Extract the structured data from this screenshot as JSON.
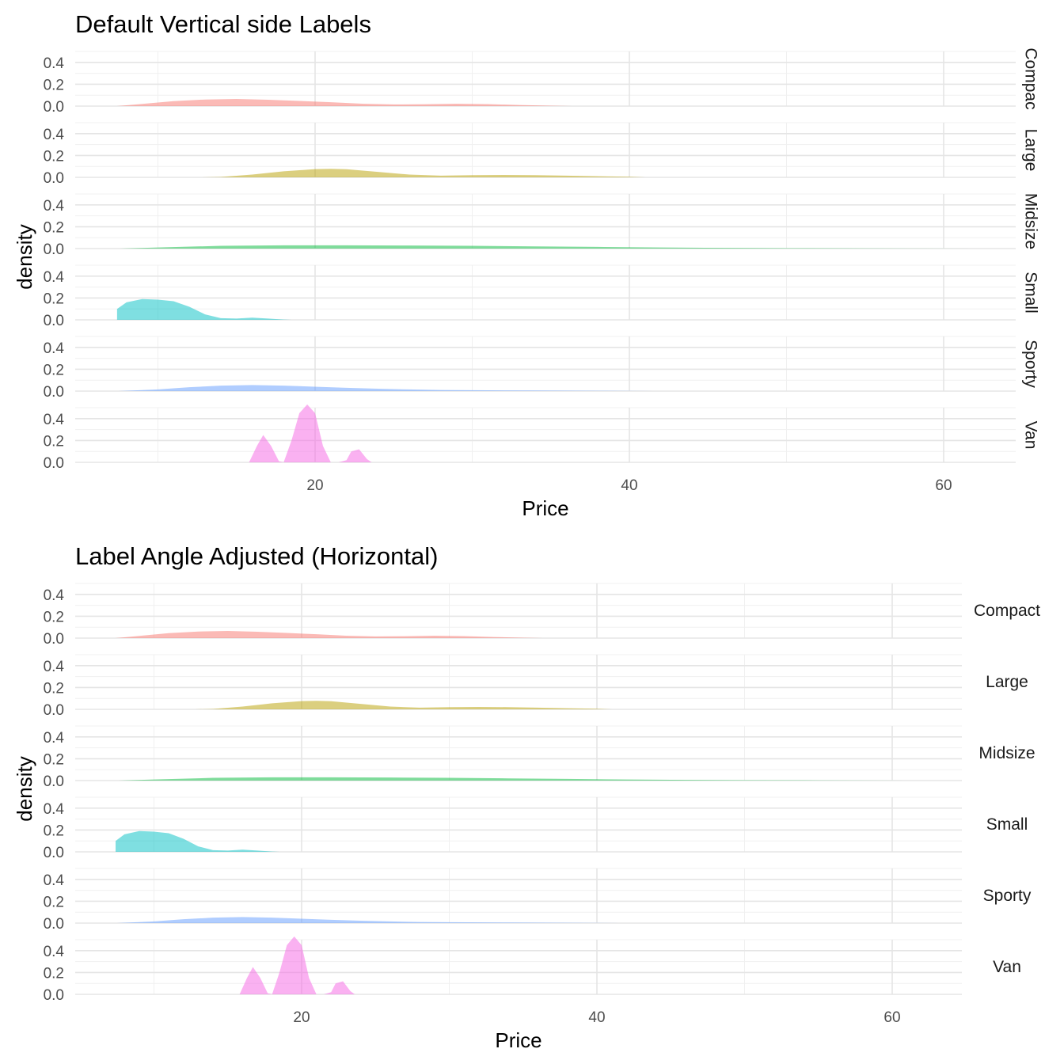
{
  "chart_data": [
    {
      "type": "area",
      "title": "Default Vertical side Labels",
      "xlabel": "Price",
      "ylabel": "density",
      "xlim": [
        5,
        65
      ],
      "ylim": [
        0,
        0.5
      ],
      "x_ticks": [
        20,
        40,
        60
      ],
      "y_ticks": [
        0.0,
        0.2,
        0.4
      ],
      "y_tick_labels": [
        "0.0",
        "0.2",
        "0.4"
      ],
      "grid": true,
      "strip_orientation": "vertical",
      "strip_labels": [
        "Compac",
        "Large",
        "Midsize",
        "Small",
        "Sporty",
        "Van"
      ],
      "series": [
        {
          "name": "Compact",
          "color": "#F8766D",
          "x": [
            7.4,
            9,
            11,
            13,
            15,
            17,
            19,
            21,
            23,
            25,
            27,
            29,
            31,
            33,
            35,
            36.3
          ],
          "y": [
            0,
            0.02,
            0.045,
            0.06,
            0.065,
            0.058,
            0.047,
            0.035,
            0.022,
            0.015,
            0.017,
            0.022,
            0.018,
            0.01,
            0.004,
            0
          ]
        },
        {
          "name": "Large",
          "color": "#B79F00",
          "x": [
            12.8,
            14,
            16,
            18,
            20,
            21,
            22,
            24,
            26,
            28,
            30,
            32,
            34,
            36,
            38,
            40,
            41
          ],
          "y": [
            0,
            0.004,
            0.025,
            0.055,
            0.075,
            0.078,
            0.074,
            0.05,
            0.025,
            0.015,
            0.02,
            0.022,
            0.02,
            0.015,
            0.01,
            0.005,
            0
          ]
        },
        {
          "name": "Midsize",
          "color": "#00BA38",
          "x": [
            7.6,
            10,
            14,
            18,
            22,
            26,
            30,
            34,
            38,
            42,
            46,
            50,
            55,
            62
          ],
          "y": [
            0,
            0.01,
            0.025,
            0.03,
            0.03,
            0.028,
            0.025,
            0.02,
            0.015,
            0.01,
            0.006,
            0.004,
            0.002,
            0
          ]
        },
        {
          "name": "Small",
          "color": "#00BFC4",
          "x": [
            7.4,
            7.4,
            8,
            9,
            10,
            11,
            12,
            13,
            14,
            15,
            16,
            17,
            18,
            18.5
          ],
          "y": [
            0,
            0.1,
            0.16,
            0.19,
            0.185,
            0.17,
            0.12,
            0.05,
            0.015,
            0.012,
            0.02,
            0.012,
            0.003,
            0
          ]
        },
        {
          "name": "Sporty",
          "color": "#619CFF",
          "x": [
            7.5,
            10,
            12,
            14,
            16,
            18,
            20,
            22,
            24,
            26,
            28,
            30,
            34,
            38,
            41.5
          ],
          "y": [
            0,
            0.015,
            0.035,
            0.05,
            0.055,
            0.05,
            0.04,
            0.03,
            0.022,
            0.015,
            0.01,
            0.008,
            0.005,
            0.003,
            0
          ]
        },
        {
          "name": "Van",
          "color": "#F564E3",
          "x": [
            15.8,
            16.3,
            16.7,
            17.2,
            17.7,
            18,
            18.5,
            19,
            19.5,
            20,
            20.5,
            21,
            21.5,
            22,
            22.3,
            22.8,
            23.3,
            23.6
          ],
          "y": [
            0,
            0.15,
            0.25,
            0.15,
            0.01,
            0,
            0.2,
            0.45,
            0.53,
            0.45,
            0.15,
            0,
            0,
            0.02,
            0.1,
            0.12,
            0.03,
            0
          ]
        }
      ]
    },
    {
      "type": "area",
      "title": "Label Angle Adjusted (Horizontal)",
      "xlabel": "Price",
      "ylabel": "density",
      "xlim": [
        5,
        65
      ],
      "ylim": [
        0,
        0.5
      ],
      "x_ticks": [
        20,
        40,
        60
      ],
      "y_ticks": [
        0.0,
        0.2,
        0.4
      ],
      "y_tick_labels": [
        "0.0",
        "0.2",
        "0.4"
      ],
      "grid": true,
      "strip_orientation": "horizontal",
      "strip_labels": [
        "Compact",
        "Large",
        "Midsize",
        "Small",
        "Sporty",
        "Van"
      ],
      "series": [
        {
          "name": "Compact",
          "color": "#F8766D",
          "x": [
            7.4,
            9,
            11,
            13,
            15,
            17,
            19,
            21,
            23,
            25,
            27,
            29,
            31,
            33,
            35,
            36.3
          ],
          "y": [
            0,
            0.02,
            0.045,
            0.06,
            0.065,
            0.058,
            0.047,
            0.035,
            0.022,
            0.015,
            0.017,
            0.022,
            0.018,
            0.01,
            0.004,
            0
          ]
        },
        {
          "name": "Large",
          "color": "#B79F00",
          "x": [
            12.8,
            14,
            16,
            18,
            20,
            21,
            22,
            24,
            26,
            28,
            30,
            32,
            34,
            36,
            38,
            40,
            41
          ],
          "y": [
            0,
            0.004,
            0.025,
            0.055,
            0.075,
            0.078,
            0.074,
            0.05,
            0.025,
            0.015,
            0.02,
            0.022,
            0.02,
            0.015,
            0.01,
            0.005,
            0
          ]
        },
        {
          "name": "Midsize",
          "color": "#00BA38",
          "x": [
            7.6,
            10,
            14,
            18,
            22,
            26,
            30,
            34,
            38,
            42,
            46,
            50,
            55,
            62
          ],
          "y": [
            0,
            0.01,
            0.025,
            0.03,
            0.03,
            0.028,
            0.025,
            0.02,
            0.015,
            0.01,
            0.006,
            0.004,
            0.002,
            0
          ]
        },
        {
          "name": "Small",
          "color": "#00BFC4",
          "x": [
            7.4,
            7.4,
            8,
            9,
            10,
            11,
            12,
            13,
            14,
            15,
            16,
            17,
            18,
            18.5
          ],
          "y": [
            0,
            0.1,
            0.16,
            0.19,
            0.185,
            0.17,
            0.12,
            0.05,
            0.015,
            0.012,
            0.02,
            0.012,
            0.003,
            0
          ]
        },
        {
          "name": "Sporty",
          "color": "#619CFF",
          "x": [
            7.5,
            10,
            12,
            14,
            16,
            18,
            20,
            22,
            24,
            26,
            28,
            30,
            34,
            38,
            41.5
          ],
          "y": [
            0,
            0.015,
            0.035,
            0.05,
            0.055,
            0.05,
            0.04,
            0.03,
            0.022,
            0.015,
            0.01,
            0.008,
            0.005,
            0.003,
            0
          ]
        },
        {
          "name": "Van",
          "color": "#F564E3",
          "x": [
            15.8,
            16.3,
            16.7,
            17.2,
            17.7,
            18,
            18.5,
            19,
            19.5,
            20,
            20.5,
            21,
            21.5,
            22,
            22.3,
            22.8,
            23.3,
            23.6
          ],
          "y": [
            0,
            0.15,
            0.25,
            0.15,
            0.01,
            0,
            0.2,
            0.45,
            0.53,
            0.45,
            0.15,
            0,
            0,
            0.02,
            0.1,
            0.12,
            0.03,
            0
          ]
        }
      ]
    }
  ]
}
